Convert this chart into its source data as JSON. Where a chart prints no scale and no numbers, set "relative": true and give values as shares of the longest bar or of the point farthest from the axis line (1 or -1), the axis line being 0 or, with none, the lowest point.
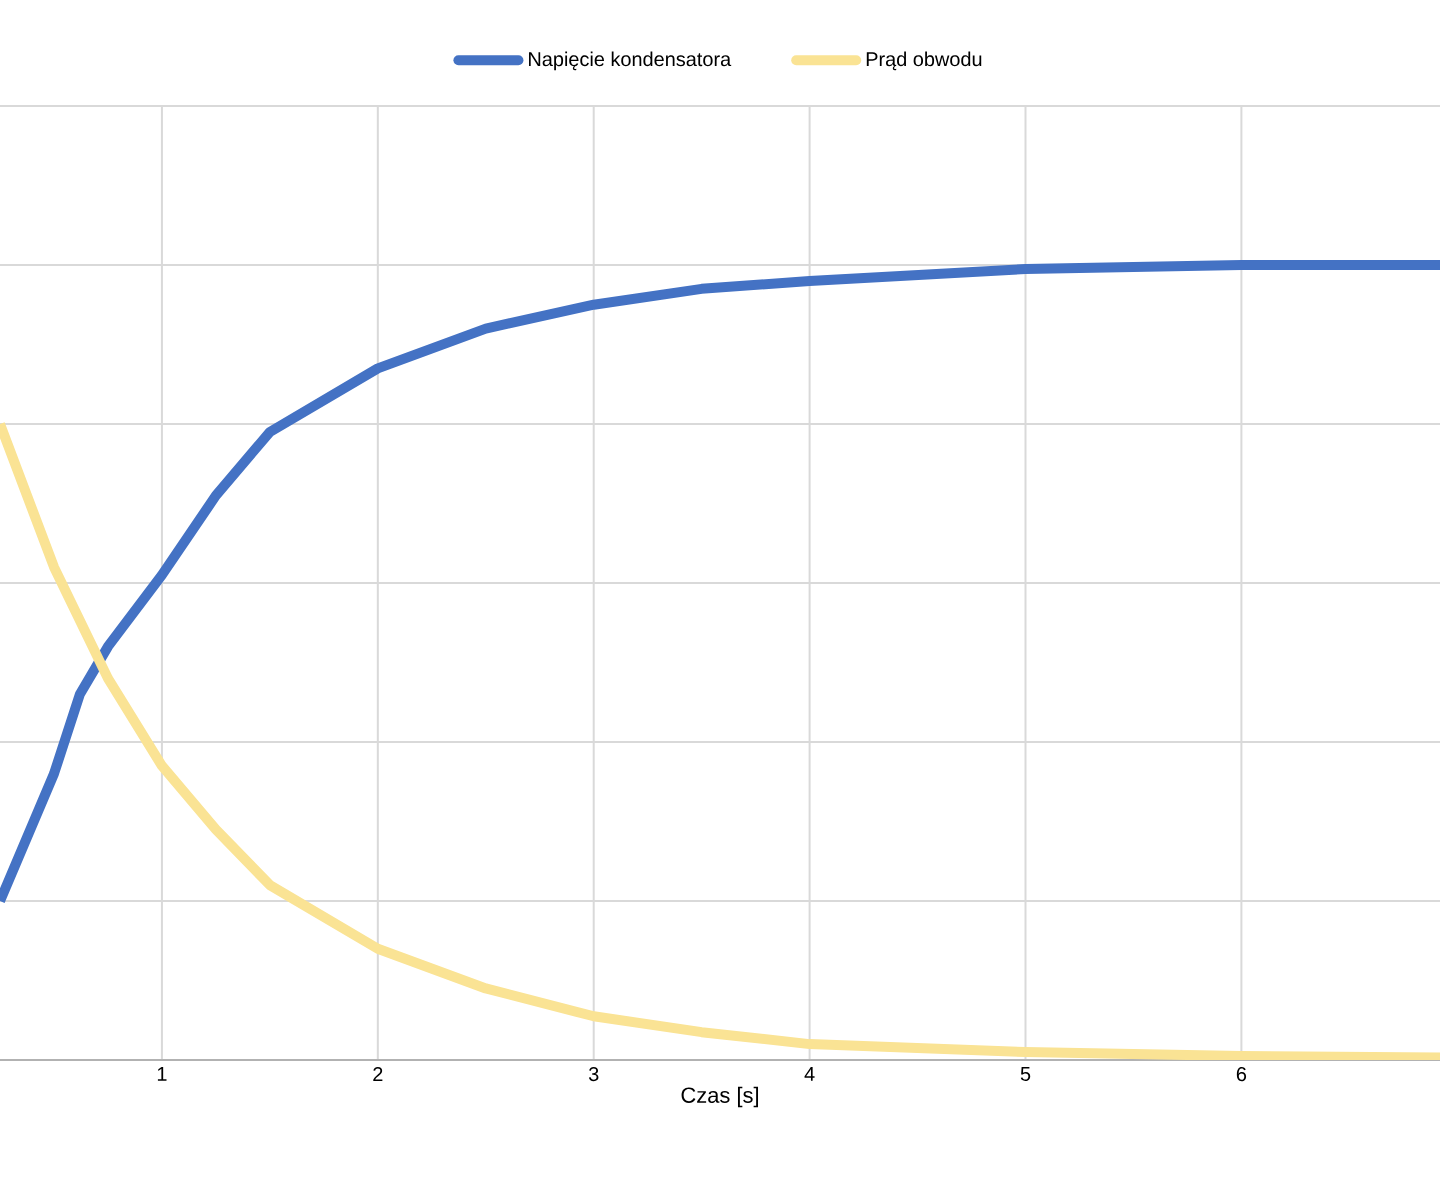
{
  "chart_data": {
    "type": "line",
    "xlabel": "Czas [s]",
    "relative": true,
    "xlim": [
      0.25,
      6.92
    ],
    "xticks": [
      1,
      2,
      3,
      4,
      5,
      6
    ],
    "grid": true,
    "legend": "top",
    "marker": "none",
    "line_style": "solid",
    "series": [
      {
        "name": "Napięcie kondensatora",
        "color": "#4472c4",
        "x": [
          0.25,
          0.5,
          0.62,
          0.75,
          1,
          1.25,
          1.5,
          2,
          2.5,
          3,
          3.5,
          4,
          5,
          6,
          6.92
        ],
        "values": [
          0.2,
          0.36,
          0.46,
          0.52,
          0.61,
          0.71,
          0.79,
          0.87,
          0.92,
          0.95,
          0.97,
          0.98,
          0.995,
          1.0,
          1.0
        ]
      },
      {
        "name": "Prąd obwodu",
        "color": "#fae394",
        "x": [
          0.25,
          0.5,
          0.75,
          1,
          1.25,
          1.5,
          2,
          2.5,
          3,
          3.5,
          4,
          5,
          6,
          6.92
        ],
        "values": [
          0.8,
          0.62,
          0.48,
          0.37,
          0.29,
          0.22,
          0.14,
          0.09,
          0.055,
          0.035,
          0.02,
          0.01,
          0.005,
          0.003
        ]
      }
    ]
  }
}
